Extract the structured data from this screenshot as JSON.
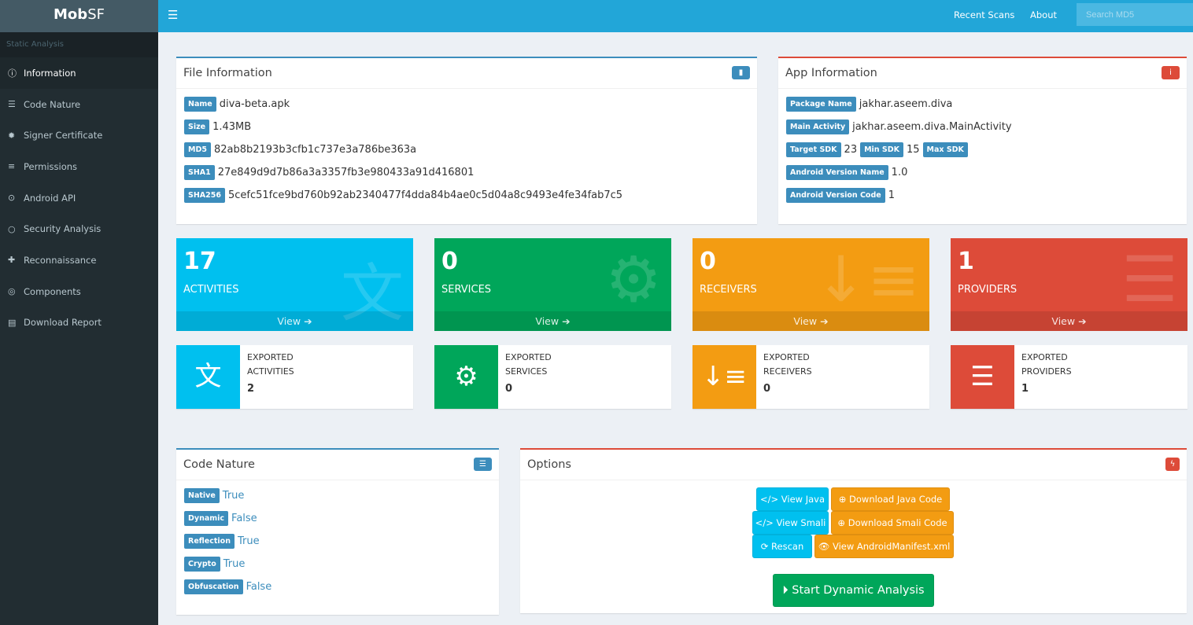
{
  "app": {
    "logo_bold": "Mob",
    "logo_rest": "SF"
  },
  "sidebar": {
    "section": "Static Analysis",
    "items": [
      {
        "label": "Information",
        "icon": "info-circle-icon"
      },
      {
        "label": "Code Nature",
        "icon": "server-icon"
      },
      {
        "label": "Signer Certificate",
        "icon": "certificate-icon"
      },
      {
        "label": "Permissions",
        "icon": "list-icon"
      },
      {
        "label": "Android API",
        "icon": "dot-circle-icon"
      },
      {
        "label": "Security Analysis",
        "icon": "circle-icon"
      },
      {
        "label": "Reconnaissance",
        "icon": "plus-icon"
      },
      {
        "label": "Components",
        "icon": "bullseye-icon"
      },
      {
        "label": "Download Report",
        "icon": "report-icon"
      }
    ]
  },
  "header": {
    "recent": "Recent Scans",
    "about": "About",
    "search_placeholder": "Search MD5"
  },
  "file_info": {
    "title": "File Information",
    "rows": [
      {
        "k": "Name",
        "v": "diva-beta.apk"
      },
      {
        "k": "Size",
        "v": "1.43MB"
      },
      {
        "k": "MD5",
        "v": "82ab8b2193b3cfb1c737e3a786be363a"
      },
      {
        "k": "SHA1",
        "v": "27e849d9d7b86a3a3357fb3e980433a91d416801"
      },
      {
        "k": "SHA256",
        "v": "5cefc51fce9bd760b92ab2340477f4dda84b4ae0c5d04a8c9493e4fe34fab7c5"
      }
    ]
  },
  "app_info": {
    "title": "App Information",
    "package_k": "Package Name",
    "package_v": "jakhar.aseem.diva",
    "main_k": "Main Activity",
    "main_v": "jakhar.aseem.diva.MainActivity",
    "target_k": "Target SDK",
    "target_v": "23",
    "min_k": "Min SDK",
    "min_v": "15",
    "max_k": "Max SDK",
    "max_v": "",
    "vname_k": "Android Version Name",
    "vname_v": "1.0",
    "vcode_k": "Android Version Code",
    "vcode_v": "1"
  },
  "tiles": [
    {
      "num": "17",
      "label": "ACTIVITIES",
      "view": "View",
      "color": "#00c0ef"
    },
    {
      "num": "0",
      "label": "SERVICES",
      "view": "View",
      "color": "#00a65a"
    },
    {
      "num": "0",
      "label": "RECEIVERS",
      "view": "View",
      "color": "#f39c12"
    },
    {
      "num": "1",
      "label": "PROVIDERS",
      "view": "View",
      "color": "#dd4b39"
    }
  ],
  "exported": [
    {
      "l1": "EXPORTED",
      "l2": "ACTIVITIES",
      "n": "2"
    },
    {
      "l1": "EXPORTED",
      "l2": "SERVICES",
      "n": "0"
    },
    {
      "l1": "EXPORTED",
      "l2": "RECEIVERS",
      "n": "0"
    },
    {
      "l1": "EXPORTED",
      "l2": "PROVIDERS",
      "n": "1"
    }
  ],
  "code_nature": {
    "title": "Code Nature",
    "rows": [
      {
        "k": "Native",
        "v": "True"
      },
      {
        "k": "Dynamic",
        "v": "False"
      },
      {
        "k": "Reflection",
        "v": "True"
      },
      {
        "k": "Crypto",
        "v": "True"
      },
      {
        "k": "Obfuscation",
        "v": "False"
      }
    ]
  },
  "options": {
    "title": "Options",
    "view_java": "View Java",
    "dl_java": "Download Java Code",
    "view_smali": "View Smali",
    "dl_smali": "Download Smali Code",
    "rescan": "Rescan",
    "manifest": "View AndroidManifest.xml",
    "dynamic": "Start Dynamic Analysis"
  }
}
